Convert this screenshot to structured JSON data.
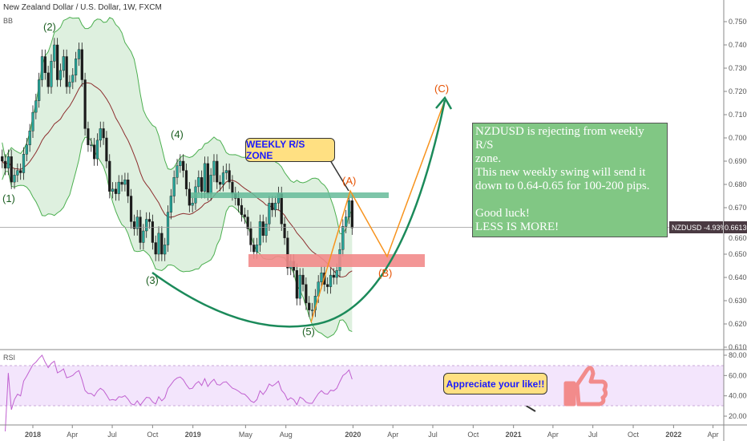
{
  "header": {
    "title": "New Zealand Dollar / U.S. Dollar, 1W, FXCM",
    "indicator": "BB",
    "rsi_label": "RSI"
  },
  "price_label": {
    "symbol_change": "NZDUSD -4.93%",
    "last_price": "0.66130"
  },
  "colors": {
    "up": "#26a69a",
    "down": "#1b1b1b",
    "bb_band": "#4caf50",
    "bb_fill": "#c8e6c9",
    "bb_basis": "#8d2e2e",
    "rsi_line": "#c060d0",
    "rsi_band": "#f3e5fc",
    "green_zone": "#66bb9a",
    "red_zone": "#f28b8b",
    "orange": "#f7931e",
    "curve": "#1b8a5a",
    "thumb": "#f28b8b"
  },
  "annotations": {
    "waves": [
      "(1)",
      "(2)",
      "(3)",
      "(4)",
      "(5)",
      "(A)",
      "(B)",
      "(C)"
    ],
    "zone_callout": "WEEKLY R/S ZONE",
    "like_callout": "Appreciate your like!!",
    "note": "NZDUSD is rejecting from weekly R/S\nzone.\nThis new weekly swing will send it\ndown to 0.64-0.65 for 100-200 pips.\n\nGood luck!\nLESS IS MORE!",
    "thumb_icon": "thumbs-up-icon"
  },
  "chart_data": {
    "type": "candlestick",
    "title": "New Zealand Dollar / U.S. Dollar, 1W, FXCM",
    "interval": "1W",
    "first_week": "2017-10-23",
    "last_week": "2019-12-30",
    "closes": [
      0.69,
      0.687,
      0.692,
      0.681,
      0.684,
      0.686,
      0.685,
      0.693,
      0.697,
      0.703,
      0.711,
      0.716,
      0.725,
      0.735,
      0.728,
      0.722,
      0.733,
      0.74,
      0.725,
      0.729,
      0.735,
      0.722,
      0.724,
      0.727,
      0.734,
      0.738,
      0.725,
      0.704,
      0.697,
      0.697,
      0.691,
      0.699,
      0.704,
      0.7,
      0.69,
      0.677,
      0.678,
      0.676,
      0.681,
      0.68,
      0.682,
      0.675,
      0.664,
      0.661,
      0.666,
      0.655,
      0.66,
      0.665,
      0.664,
      0.655,
      0.65,
      0.659,
      0.65,
      0.654,
      0.668,
      0.675,
      0.683,
      0.688,
      0.69,
      0.686,
      0.678,
      0.671,
      0.672,
      0.679,
      0.683,
      0.677,
      0.689,
      0.676,
      0.684,
      0.69,
      0.681,
      0.68,
      0.685,
      0.686,
      0.681,
      0.676,
      0.674,
      0.671,
      0.667,
      0.666,
      0.661,
      0.654,
      0.651,
      0.654,
      0.664,
      0.658,
      0.663,
      0.672,
      0.669,
      0.672,
      0.676,
      0.663,
      0.657,
      0.644,
      0.647,
      0.643,
      0.631,
      0.641,
      0.637,
      0.629,
      0.626,
      0.626,
      0.632,
      0.638,
      0.642,
      0.637,
      0.636,
      0.641,
      0.64,
      0.643,
      0.652,
      0.662,
      0.666,
      0.673,
      0.6613
    ],
    "y_range": [
      0.605,
      0.76
    ],
    "y_ticks": [
      "0.75000",
      "0.74000",
      "0.73000",
      "0.72000",
      "0.71000",
      "0.70000",
      "0.69000",
      "0.68000",
      "0.67000",
      "0.66000",
      "0.65000",
      "0.64000",
      "0.63000",
      "0.62000",
      "0.61000"
    ],
    "rsi_ticks": [
      "80.0000",
      "60.0000",
      "40.0000",
      "20.0000"
    ],
    "rsi_bands": [
      70,
      30
    ],
    "indicators": [
      "Bollinger Bands (20, 2)",
      "RSI (14)"
    ],
    "x_ticks": [
      {
        "label": "2018",
        "date": "2018-01-01",
        "bold": true
      },
      {
        "label": "Apr",
        "date": "2018-04-01"
      },
      {
        "label": "Jul",
        "date": "2018-07-01"
      },
      {
        "label": "Oct",
        "date": "2018-10-01"
      },
      {
        "label": "2019",
        "date": "2019-01-01",
        "bold": true
      },
      {
        "label": "May",
        "date": "2019-05-01"
      },
      {
        "label": "Aug",
        "date": "2019-08-01"
      },
      {
        "label": "2020",
        "date": "2020-01-01",
        "bold": true
      },
      {
        "label": "Apr",
        "date": "2020-04-01"
      },
      {
        "label": "Jul",
        "date": "2020-07-01"
      },
      {
        "label": "Oct",
        "date": "2020-10-01"
      },
      {
        "label": "2021",
        "date": "2021-01-01",
        "bold": true
      },
      {
        "label": "Apr",
        "date": "2021-04-01"
      },
      {
        "label": "Jul",
        "date": "2021-07-01"
      },
      {
        "label": "Oct",
        "date": "2021-10-01"
      },
      {
        "label": "2022",
        "date": "2022-01-01",
        "bold": true
      },
      {
        "label": "Apr",
        "date": "2022-04-01"
      }
    ],
    "zones": [
      {
        "name": "weekly R/S zone",
        "from": 0.674,
        "to": 0.676
      },
      {
        "name": "target zone",
        "from": 0.645,
        "to": 0.65
      }
    ]
  }
}
